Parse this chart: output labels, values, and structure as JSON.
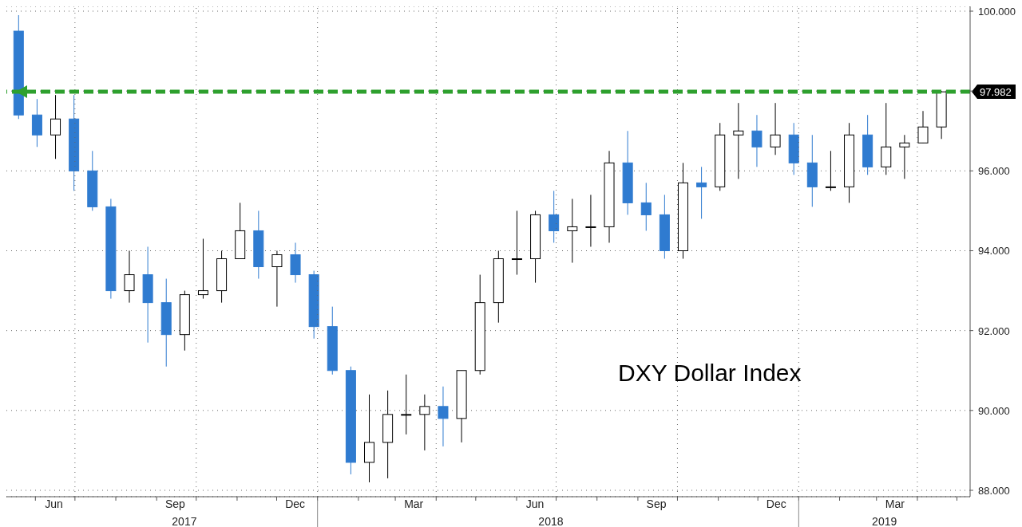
{
  "chart_data": {
    "type": "candlestick",
    "title": "DXY Dollar Index",
    "x": [
      "2017-05-19",
      "2017-06-02",
      "2017-06-16",
      "2017-06-30",
      "2017-07-14",
      "2017-07-28",
      "2017-08-11",
      "2017-08-25",
      "2017-09-08",
      "2017-09-22",
      "2017-10-06",
      "2017-10-20",
      "2017-11-03",
      "2017-11-17",
      "2017-12-01",
      "2017-12-15",
      "2017-12-29",
      "2018-01-12",
      "2018-01-26",
      "2018-02-09",
      "2018-02-23",
      "2018-03-09",
      "2018-03-23",
      "2018-04-06",
      "2018-04-20",
      "2018-05-04",
      "2018-05-18",
      "2018-06-01",
      "2018-06-15",
      "2018-06-29",
      "2018-07-13",
      "2018-07-27",
      "2018-08-10",
      "2018-08-24",
      "2018-09-07",
      "2018-09-21",
      "2018-10-05",
      "2018-10-19",
      "2018-11-02",
      "2018-11-16",
      "2018-11-30",
      "2018-12-14",
      "2018-12-28",
      "2019-01-11",
      "2019-01-25",
      "2019-02-08",
      "2019-02-22",
      "2019-03-08",
      "2019-03-22",
      "2019-04-05",
      "2019-04-19"
    ],
    "ohlc": [
      [
        99.5,
        99.9,
        97.3,
        97.4
      ],
      [
        97.4,
        97.8,
        96.6,
        96.9
      ],
      [
        96.9,
        97.9,
        96.3,
        97.3
      ],
      [
        97.3,
        97.9,
        95.5,
        96.0
      ],
      [
        96.0,
        96.5,
        95.0,
        95.1
      ],
      [
        95.1,
        95.3,
        92.8,
        93.0
      ],
      [
        93.0,
        94.0,
        92.7,
        93.4
      ],
      [
        93.4,
        94.1,
        91.7,
        92.7
      ],
      [
        92.7,
        93.3,
        91.1,
        91.9
      ],
      [
        91.9,
        93.0,
        91.5,
        92.9
      ],
      [
        92.9,
        94.3,
        92.8,
        93.0
      ],
      [
        93.0,
        94.0,
        92.7,
        93.8
      ],
      [
        93.8,
        95.2,
        93.8,
        94.5
      ],
      [
        94.5,
        95.0,
        93.3,
        93.6
      ],
      [
        93.6,
        94.0,
        92.6,
        93.9
      ],
      [
        93.9,
        94.2,
        93.2,
        93.4
      ],
      [
        93.4,
        93.5,
        91.8,
        92.1
      ],
      [
        92.1,
        92.6,
        90.9,
        91.0
      ],
      [
        91.0,
        91.1,
        88.4,
        88.7
      ],
      [
        88.7,
        90.4,
        88.2,
        89.2
      ],
      [
        89.2,
        90.5,
        88.3,
        89.9
      ],
      [
        89.9,
        90.9,
        89.4,
        89.9
      ],
      [
        89.9,
        90.4,
        89.0,
        90.1
      ],
      [
        90.1,
        90.6,
        89.1,
        89.8
      ],
      [
        89.8,
        91.0,
        89.2,
        91.0
      ],
      [
        91.0,
        93.4,
        90.9,
        92.7
      ],
      [
        92.7,
        94.0,
        92.2,
        93.8
      ],
      [
        93.8,
        95.0,
        93.4,
        93.8
      ],
      [
        93.8,
        95.0,
        93.2,
        94.9
      ],
      [
        94.9,
        95.5,
        94.2,
        94.5
      ],
      [
        94.5,
        95.3,
        93.7,
        94.6
      ],
      [
        94.6,
        95.4,
        94.1,
        94.6
      ],
      [
        94.6,
        96.5,
        94.2,
        96.2
      ],
      [
        96.2,
        97.0,
        94.9,
        95.2
      ],
      [
        95.2,
        95.7,
        94.5,
        94.9
      ],
      [
        94.9,
        95.4,
        93.8,
        94.0
      ],
      [
        94.0,
        96.2,
        93.8,
        95.7
      ],
      [
        95.7,
        96.1,
        94.8,
        95.6
      ],
      [
        95.6,
        97.2,
        95.5,
        96.9
      ],
      [
        96.9,
        97.7,
        95.8,
        97.0
      ],
      [
        97.0,
        97.4,
        96.1,
        96.6
      ],
      [
        96.6,
        97.7,
        96.4,
        96.9
      ],
      [
        96.9,
        97.2,
        95.9,
        96.2
      ],
      [
        96.2,
        96.9,
        95.1,
        95.6
      ],
      [
        95.6,
        96.5,
        95.5,
        95.6
      ],
      [
        95.6,
        97.2,
        95.2,
        96.9
      ],
      [
        96.9,
        97.4,
        95.9,
        96.1
      ],
      [
        96.1,
        97.7,
        95.9,
        96.6
      ],
      [
        96.6,
        96.9,
        95.8,
        96.7
      ],
      [
        96.7,
        97.5,
        96.7,
        97.1
      ],
      [
        97.1,
        98.0,
        96.8,
        97.98
      ]
    ],
    "xlim": [
      "2017-05-10",
      "2019-05-11"
    ],
    "xticks": [
      {
        "value": "2017-06-01",
        "label": null
      },
      {
        "value": "2017-06-15",
        "label": "Jun"
      },
      {
        "value": "2017-07-01",
        "label": null
      },
      {
        "value": "2017-08-01",
        "label": null
      },
      {
        "value": "2017-09-01",
        "label": null
      },
      {
        "value": "2017-09-15",
        "label": "Sep"
      },
      {
        "value": "2017-10-01",
        "label": null
      },
      {
        "value": "2017-11-01",
        "label": null
      },
      {
        "value": "2017-12-01",
        "label": null
      },
      {
        "value": "2017-12-15",
        "label": "Dec"
      },
      {
        "value": "2018-01-01",
        "label": null
      },
      {
        "value": "2018-02-01",
        "label": null
      },
      {
        "value": "2018-03-01",
        "label": null
      },
      {
        "value": "2018-03-15",
        "label": "Mar"
      },
      {
        "value": "2018-04-01",
        "label": null
      },
      {
        "value": "2018-05-01",
        "label": null
      },
      {
        "value": "2018-06-01",
        "label": null
      },
      {
        "value": "2018-06-15",
        "label": "Jun"
      },
      {
        "value": "2018-07-01",
        "label": null
      },
      {
        "value": "2018-08-01",
        "label": null
      },
      {
        "value": "2018-09-01",
        "label": null
      },
      {
        "value": "2018-09-15",
        "label": "Sep"
      },
      {
        "value": "2018-10-01",
        "label": null
      },
      {
        "value": "2018-11-01",
        "label": null
      },
      {
        "value": "2018-12-01",
        "label": null
      },
      {
        "value": "2018-12-15",
        "label": "Dec"
      },
      {
        "value": "2019-01-01",
        "label": null
      },
      {
        "value": "2019-02-01",
        "label": null
      },
      {
        "value": "2019-03-01",
        "label": null
      },
      {
        "value": "2019-03-15",
        "label": "Mar"
      },
      {
        "value": "2019-04-01",
        "label": null
      },
      {
        "value": "2019-05-01",
        "label": null
      }
    ],
    "x2lim": [
      "2017-05-10",
      "2019-05-11"
    ],
    "x2ticks": [
      {
        "value": "2017-09-22",
        "label": "2017"
      },
      {
        "value": "2018-01-01",
        "label": null
      },
      {
        "value": "2018-06-27",
        "label": "2018"
      },
      {
        "value": "2019-01-01",
        "label": null
      },
      {
        "value": "2019-03-07",
        "label": "2019"
      }
    ],
    "ylim": [
      87.84,
      100.12
    ],
    "yticks": [
      {
        "value": 88,
        "label": "88.000"
      },
      {
        "value": 90,
        "label": "90.000"
      },
      {
        "value": 92,
        "label": "92.000"
      },
      {
        "value": 94,
        "label": "94.000"
      },
      {
        "value": 96,
        "label": "96.000"
      },
      {
        "value": 98,
        "label": null
      },
      {
        "value": 100,
        "label": "100.000"
      }
    ],
    "ref_lines": [
      {
        "axis": "y",
        "value": 97.982,
        "label": "97.982",
        "color": "#2ea02e",
        "line_style": "dashed"
      }
    ],
    "grid": true
  }
}
